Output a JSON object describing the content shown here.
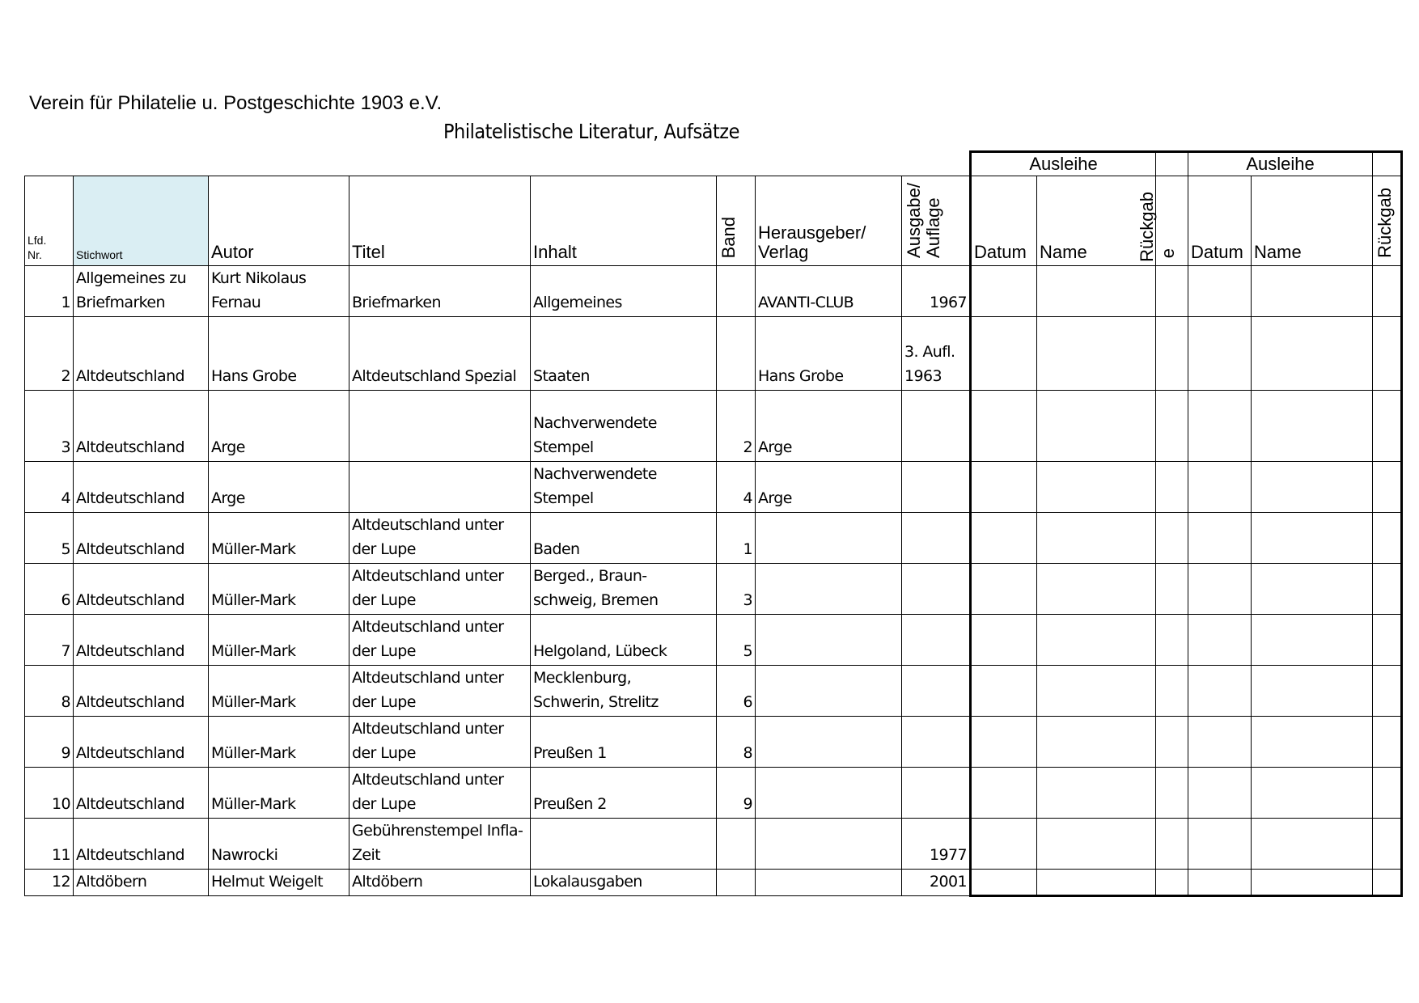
{
  "header": {
    "organization": "Verein für Philatelie u. Postgeschichte 1903 e.V.",
    "title": "Philatelistische Literatur, Aufsätze"
  },
  "columns": {
    "nr": "Lfd.\nNr.",
    "stichwort": "Stichwort",
    "autor": "Autor",
    "titel": "Titel",
    "inhalt": "Inhalt",
    "band": "Band",
    "verlag": "Herausgeber/\nVerlag",
    "ausgabe": "Ausgabe/\nAuflage",
    "ausleihe_group_1": "Ausleihe",
    "ausleihe_group_2": "Ausleihe",
    "datum_1": "Datum",
    "name_1": "Name",
    "rueckgabe_1": "Rückgab",
    "rueckgabe_1_cont": "e",
    "datum_2": "Datum",
    "name_2": "Name",
    "rueckgabe_2": "Rückgab"
  },
  "stichwort_highlight": "#daeef3",
  "rows": [
    {
      "nr": "1",
      "stichwort": "Allgemeines zu\nBriefmarken",
      "autor": "Kurt Nikolaus\nFernau",
      "titel": "Briefmarken",
      "inhalt": "Allgemeines",
      "band": "",
      "verlag": "AVANTI-CLUB",
      "ausgabe": "1967"
    },
    {
      "nr": "2",
      "stichwort": "Altdeutschland",
      "autor": "Hans Grobe",
      "titel": "Altdeutschland Spezial",
      "inhalt": "Staaten",
      "band": "",
      "verlag": "Hans Grobe",
      "ausgabe": "3. Aufl.\n1963"
    },
    {
      "nr": "3",
      "stichwort": "Altdeutschland",
      "autor": "Arge",
      "titel": "",
      "inhalt": "Nachverwendete\nStempel",
      "band": "2",
      "verlag": "Arge",
      "ausgabe": ""
    },
    {
      "nr": "4",
      "stichwort": "Altdeutschland",
      "autor": "Arge",
      "titel": "",
      "inhalt": "Nachverwendete\nStempel",
      "band": "4",
      "verlag": "Arge",
      "ausgabe": ""
    },
    {
      "nr": "5",
      "stichwort": "Altdeutschland",
      "autor": "Müller-Mark",
      "titel": "Altdeutschland unter\nder Lupe",
      "inhalt": "Baden",
      "band": "1",
      "verlag": "",
      "ausgabe": ""
    },
    {
      "nr": "6",
      "stichwort": "Altdeutschland",
      "autor": "Müller-Mark",
      "titel": "Altdeutschland unter\nder Lupe",
      "inhalt": "Berged., Braun-\nschweig, Bremen",
      "band": "3",
      "verlag": "",
      "ausgabe": ""
    },
    {
      "nr": "7",
      "stichwort": "Altdeutschland",
      "autor": "Müller-Mark",
      "titel": "Altdeutschland unter\nder Lupe",
      "inhalt": "Helgoland, Lübeck",
      "band": "5",
      "verlag": "",
      "ausgabe": ""
    },
    {
      "nr": "8",
      "stichwort": "Altdeutschland",
      "autor": "Müller-Mark",
      "titel": "Altdeutschland unter\nder Lupe",
      "inhalt": "Mecklenburg,\nSchwerin, Strelitz",
      "band": "6",
      "verlag": "",
      "ausgabe": ""
    },
    {
      "nr": "9",
      "stichwort": "Altdeutschland",
      "autor": "Müller-Mark",
      "titel": "Altdeutschland unter\nder Lupe",
      "inhalt": "Preußen 1",
      "band": "8",
      "verlag": "",
      "ausgabe": ""
    },
    {
      "nr": "10",
      "stichwort": "Altdeutschland",
      "autor": "Müller-Mark",
      "titel": "Altdeutschland unter\nder Lupe",
      "inhalt": "Preußen 2",
      "band": "9",
      "verlag": "",
      "ausgabe": ""
    },
    {
      "nr": "11",
      "stichwort": "Altdeutschland",
      "autor": "Nawrocki",
      "titel": "Gebührenstempel Infla-\nZeit",
      "inhalt": "",
      "band": "",
      "verlag": "",
      "ausgabe": "1977"
    },
    {
      "nr": "12",
      "stichwort": "Altdöbern",
      "autor": "Helmut Weigelt",
      "titel": "Altdöbern",
      "inhalt": "Lokalausgaben",
      "band": "",
      "verlag": "",
      "ausgabe": "2001"
    }
  ]
}
